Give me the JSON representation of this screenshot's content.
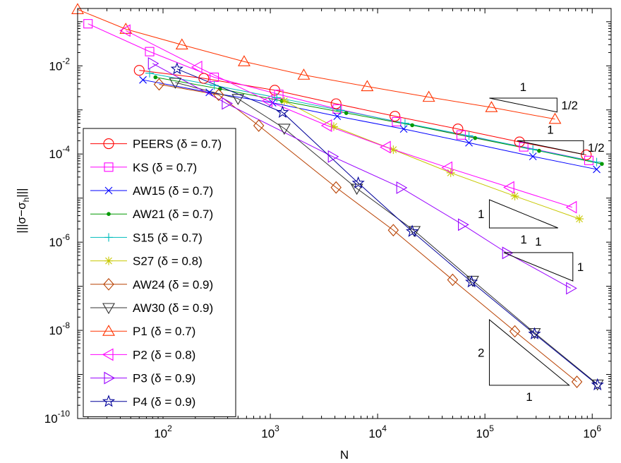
{
  "chart_data": {
    "type": "line",
    "xlabel": "N",
    "ylabel": "|||σ−σ_h|||",
    "xscale": "log",
    "yscale": "log",
    "xlim": [
      16,
      1500000
    ],
    "ylim": [
      1e-10,
      0.2
    ],
    "x_ticks": [
      {
        "value": 100,
        "base": "10",
        "exp": "2"
      },
      {
        "value": 1000,
        "base": "10",
        "exp": "3"
      },
      {
        "value": 10000,
        "base": "10",
        "exp": "4"
      },
      {
        "value": 100000,
        "base": "10",
        "exp": "5"
      },
      {
        "value": 1000000,
        "base": "10",
        "exp": "6"
      }
    ],
    "y_ticks": [
      {
        "value": 1e-10,
        "base": "10",
        "exp": "-10"
      },
      {
        "value": 1e-08,
        "base": "10",
        "exp": "-8"
      },
      {
        "value": 1e-06,
        "base": "10",
        "exp": "-6"
      },
      {
        "value": 0.0001,
        "base": "10",
        "exp": "-4"
      },
      {
        "value": 0.01,
        "base": "10",
        "exp": "-2"
      }
    ],
    "grid": false,
    "legend_position": "lower-left",
    "series": [
      {
        "name": "PEERS (δ = 0.7)",
        "color": "#ff0000",
        "marker": "circle",
        "points": [
          [
            60,
            0.0079
          ],
          [
            240,
            0.0052
          ],
          [
            1100,
            0.0028
          ],
          [
            4100,
            0.00138
          ],
          [
            14500,
            0.00072
          ],
          [
            56000,
            0.00037
          ],
          [
            210000,
            0.000188
          ],
          [
            880000,
            9.55e-05
          ]
        ]
      },
      {
        "name": "KS (δ = 0.7)",
        "color": "#ff00ff",
        "marker": "square",
        "points": [
          [
            20,
            0.09
          ],
          [
            75,
            0.021
          ],
          [
            300,
            0.0055
          ],
          [
            1200,
            0.00225
          ],
          [
            4200,
            0.00105
          ],
          [
            15000,
            0.00054
          ],
          [
            60000,
            0.00027
          ],
          [
            230000,
            0.000145
          ],
          [
            930000,
            7.15e-05
          ]
        ]
      },
      {
        "name": "AW15 (δ = 0.7)",
        "color": "#0000ff",
        "marker": "x",
        "points": [
          [
            65,
            0.0048
          ],
          [
            270,
            0.0025
          ],
          [
            1050,
            0.00145
          ],
          [
            4200,
            0.00072
          ],
          [
            17500,
            0.00037
          ],
          [
            71000,
            0.00018
          ],
          [
            280000,
            8.82e-05
          ],
          [
            1100000,
            4.49e-05
          ]
        ]
      },
      {
        "name": "AW21 (δ = 0.7)",
        "color": "#009900",
        "marker": "dot",
        "points": [
          [
            85,
            0.0055
          ],
          [
            340,
            0.003
          ],
          [
            1280,
            0.0016
          ],
          [
            5100,
            0.00085
          ],
          [
            21000,
            0.00045
          ],
          [
            81000,
            0.00023
          ],
          [
            320000,
            0.000118
          ],
          [
            1230000,
            5.96e-05
          ]
        ]
      },
      {
        "name": "S15 (δ = 0.7)",
        "color": "#00bcbc",
        "marker": "plus",
        "points": [
          [
            75,
            0.0068
          ],
          [
            300,
            0.0036
          ],
          [
            1150,
            0.0019
          ],
          [
            4500,
            0.00098
          ],
          [
            18000,
            0.0005
          ],
          [
            71000,
            0.00026
          ],
          [
            280000,
            0.000128
          ],
          [
            1100000,
            6.56e-05
          ]
        ]
      },
      {
        "name": "S27 (δ = 0.8)",
        "color": "#c8c800",
        "marker": "asterisk",
        "points": [
          [
            1350,
            0.0016
          ],
          [
            3900,
            0.00042
          ],
          [
            14000,
            0.000125
          ],
          [
            48000,
            3.75e-05
          ],
          [
            190000,
            1.11e-05
          ],
          [
            760000,
            3.38e-06
          ]
        ]
      },
      {
        "name": "AW24 (δ = 0.9)",
        "color": "#b84000",
        "marker": "diamond",
        "points": [
          [
            92,
            0.0038
          ],
          [
            330,
            0.0022
          ],
          [
            780,
            0.00044
          ],
          [
            4100,
            1.74e-05
          ],
          [
            14000,
            1.87e-06
          ],
          [
            50000,
            1.4e-07
          ],
          [
            190000,
            9.5e-09
          ],
          [
            720000,
            6.8e-10
          ]
        ]
      },
      {
        "name": "AW30 (δ = 0.9)",
        "color": "#333333",
        "marker": "triangle-down",
        "points": [
          [
            130,
            0.0042
          ],
          [
            500,
            0.0018
          ],
          [
            1350,
            0.00038
          ],
          [
            6400,
            1.65e-05
          ],
          [
            22000,
            1.82e-06
          ],
          [
            77000,
            1.35e-07
          ],
          [
            290000,
            8.8e-09
          ],
          [
            1120000,
            6e-10
          ]
        ]
      },
      {
        "name": "P1 (δ = 0.7)",
        "color": "#ff3300",
        "marker": "triangle-up",
        "points": [
          [
            16,
            0.19
          ],
          [
            45,
            0.068
          ],
          [
            150,
            0.03
          ],
          [
            570,
            0.0125
          ],
          [
            2050,
            0.0062
          ],
          [
            8000,
            0.0034
          ],
          [
            30000,
            0.00195
          ],
          [
            115000,
            0.00114
          ],
          [
            450000,
            0.000618
          ]
        ]
      },
      {
        "name": "P2 (δ = 0.8)",
        "color": "#ff00ff",
        "marker": "triangle-left",
        "points": [
          [
            45,
            0.063
          ],
          [
            210,
            0.0094
          ],
          [
            950,
            0.0016
          ],
          [
            3400,
            0.00044
          ],
          [
            12000,
            0.000143
          ],
          [
            45000,
            4.9e-05
          ],
          [
            170000,
            1.75e-05
          ],
          [
            650000,
            6.21e-06
          ]
        ]
      },
      {
        "name": "P3 (δ = 0.9)",
        "color": "#9900ff",
        "marker": "triangle-right",
        "points": [
          [
            80,
            0.0113
          ],
          [
            390,
            0.0014
          ],
          [
            3800,
            8.75e-05
          ],
          [
            16500,
            1.72e-05
          ],
          [
            62000,
            2.5e-06
          ],
          [
            160000,
            5.7e-07
          ],
          [
            630000,
            9.01e-08
          ]
        ]
      },
      {
        "name": "P4 (δ = 0.9)",
        "color": "#000099",
        "marker": "star",
        "points": [
          [
            135,
            0.0085
          ],
          [
            1300,
            0.00088
          ],
          [
            6600,
            2.2e-05
          ],
          [
            21000,
            1.75e-06
          ],
          [
            75000,
            1.25e-07
          ],
          [
            290000,
            8.3e-09
          ],
          [
            1120000,
            5.8e-10
          ]
        ]
      }
    ],
    "slope_triangles": [
      {
        "orientation": "below",
        "x1": 110000,
        "x2": 470000,
        "y1": 0.00185,
        "rise_label": "1/2",
        "run_label": "1"
      },
      {
        "orientation": "below",
        "x1": 200000,
        "x2": 830000,
        "y1": 0.0002,
        "rise_label": "1/2",
        "run_label": "1"
      },
      {
        "orientation": "above",
        "x1": 110000,
        "x2": 480000,
        "y1": 2.1e-06,
        "rise_label": "1",
        "run_label": "1"
      },
      {
        "orientation": "below",
        "x1": 150000,
        "x2": 660000,
        "y1": 5.8e-07,
        "rise_label": "1",
        "run_label": "1"
      },
      {
        "orientation": "above",
        "x1": 110000,
        "x2": 610000,
        "y1": 5.68e-10,
        "rise_label": "2",
        "run_label": "1"
      }
    ]
  }
}
